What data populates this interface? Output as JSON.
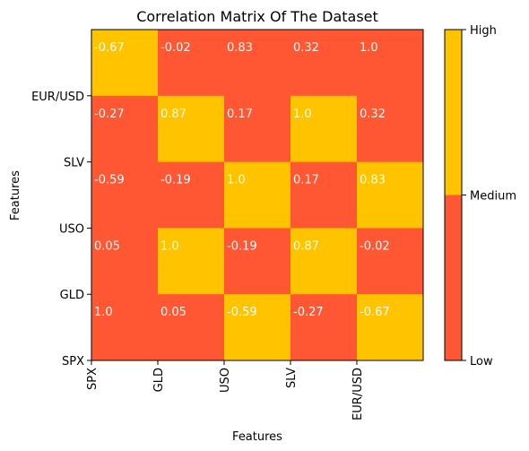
{
  "chart_data": {
    "type": "heatmap",
    "title": "Correlation Matrix Of The Dataset",
    "xlabel": "Features",
    "ylabel": "Features",
    "x_ticks": [
      "SPX",
      "GLD",
      "USO",
      "SLV",
      "EUR/USD"
    ],
    "y_ticks": [
      "SPX",
      "GLD",
      "USO",
      "SLV",
      "EUR/USD"
    ],
    "rows": [
      {
        "values": [
          -0.67,
          -0.02,
          0.83,
          0.32,
          1.0
        ],
        "labels": [
          "-0.67",
          "-0.02",
          "0.83",
          "0.32",
          "1.0"
        ],
        "levels": [
          "high",
          "low",
          "low",
          "low",
          "low"
        ]
      },
      {
        "values": [
          -0.27,
          0.87,
          0.17,
          1.0,
          0.32
        ],
        "labels": [
          "-0.27",
          "0.87",
          "0.17",
          "1.0",
          "0.32"
        ],
        "levels": [
          "low",
          "high",
          "low",
          "high",
          "low"
        ]
      },
      {
        "values": [
          -0.59,
          -0.19,
          1.0,
          0.17,
          0.83
        ],
        "labels": [
          "-0.59",
          "-0.19",
          "1.0",
          "0.17",
          "0.83"
        ],
        "levels": [
          "low",
          "low",
          "high",
          "low",
          "high"
        ]
      },
      {
        "values": [
          0.05,
          1.0,
          -0.19,
          0.87,
          -0.02
        ],
        "labels": [
          "0.05",
          "1.0",
          "-0.19",
          "0.87",
          "-0.02"
        ],
        "levels": [
          "low",
          "high",
          "low",
          "high",
          "low"
        ]
      },
      {
        "values": [
          1.0,
          0.05,
          -0.59,
          -0.27,
          -0.67
        ],
        "labels": [
          "1.0",
          "0.05",
          "-0.59",
          "-0.27",
          "-0.67"
        ],
        "levels": [
          "low",
          "low",
          "high",
          "low",
          "high"
        ]
      }
    ],
    "colorbar": {
      "labels": [
        "Low",
        "Medium",
        "High"
      ],
      "levels": [
        "low",
        "high"
      ],
      "medium_fraction": 0.5
    },
    "colors": {
      "low": "#ff5733",
      "high": "#ffc300"
    }
  }
}
